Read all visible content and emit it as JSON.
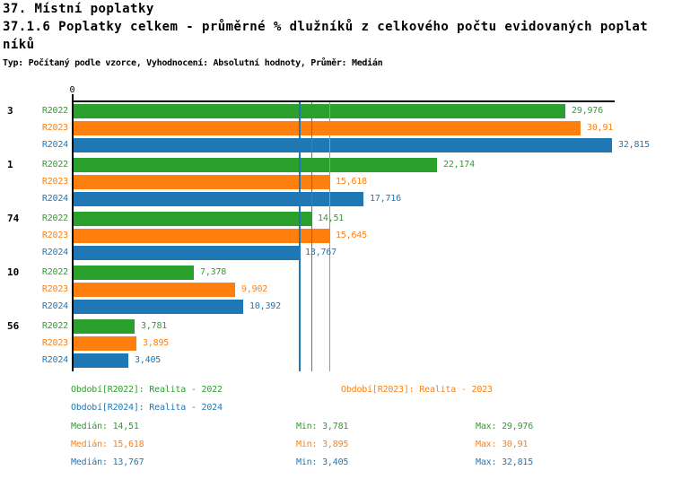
{
  "header": {
    "title": "37. Místní poplatky",
    "subtitle_lines": [
      "37.1.6 Poplatky celkem - průměrné % dlužníků z celkového počtu evidovaných poplat",
      "níků"
    ],
    "meta": "Typ: Počítaný podle vzorce, Vyhodnocení: Absolutní hodnoty, Průměr: Medián"
  },
  "chart_data": {
    "type": "bar",
    "orientation": "horizontal",
    "x_axis": {
      "tick_labels": [
        "0"
      ],
      "xlim": [
        0,
        33
      ],
      "grid": false
    },
    "series": [
      {
        "name": "R2022",
        "color": "#2ca02c",
        "median": 14.51,
        "median_label": "14,51"
      },
      {
        "name": "R2023",
        "color": "#ff7f0e",
        "median": 15.618,
        "median_label": "15,618"
      },
      {
        "name": "R2024",
        "color": "#1f77b4",
        "median": 13.767,
        "median_label": "13,767"
      }
    ],
    "groups": [
      {
        "label": "3",
        "values": [
          29.976,
          30.91,
          32.815
        ],
        "value_labels": [
          "29,976",
          "30,91",
          "32,815"
        ]
      },
      {
        "label": "1",
        "values": [
          22.174,
          15.618,
          17.716
        ],
        "value_labels": [
          "22,174",
          "15,618",
          "17,716"
        ]
      },
      {
        "label": "74",
        "values": [
          14.51,
          15.645,
          13.767
        ],
        "value_labels": [
          "14,51",
          "15,645",
          "13,767"
        ]
      },
      {
        "label": "10",
        "values": [
          7.378,
          9.902,
          10.392
        ],
        "value_labels": [
          "7,378",
          "9,902",
          "10,392"
        ]
      },
      {
        "label": "56",
        "values": [
          3.781,
          3.895,
          3.405
        ],
        "value_labels": [
          "3,781",
          "3,895",
          "3,405"
        ]
      }
    ],
    "median_lines_on_top": true
  },
  "legend": {
    "items": [
      {
        "text": "Období[R2022]: Realita - 2022",
        "color": "#2ca02c"
      },
      {
        "text": "Období[R2023]: Realita - 2023",
        "color": "#ff7f0e"
      },
      {
        "text": "Období[R2024]: Realita - 2024",
        "color": "#1f77b4"
      }
    ]
  },
  "stats": {
    "rows": [
      {
        "median": "Medián: 14,51",
        "min": "Min: 3,781",
        "max": "Max: 29,976",
        "color": "#2ca02c"
      },
      {
        "median": "Medián: 15,618",
        "min": "Min: 3,895",
        "max": "Max: 30,91",
        "color": "#ff7f0e"
      },
      {
        "median": "Medián: 13,767",
        "min": "Min: 3,405",
        "max": "Max: 32,815",
        "color": "#1f77b4"
      }
    ]
  }
}
